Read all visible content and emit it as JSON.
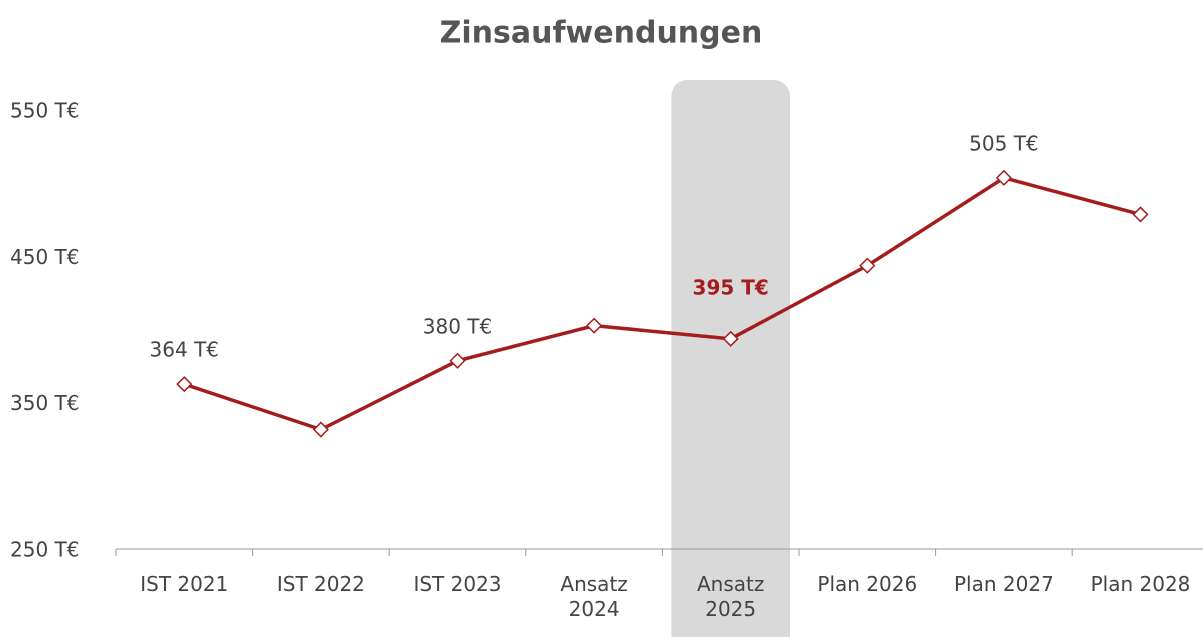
{
  "chart_data": {
    "type": "line",
    "title": "Zinsaufwendungen",
    "categories": [
      "IST 2021",
      "IST 2022",
      "IST 2023",
      "Ansatz\n2024",
      "Ansatz\n2025",
      "Plan 2026",
      "Plan 2027",
      "Plan 2028"
    ],
    "series": [
      {
        "color": "#a51c1c",
        "values": [
          364,
          333,
          380,
          404,
          395,
          445,
          505,
          480
        ],
        "value_labels": [
          "364 T€",
          null,
          "380 T€",
          null,
          "395 T€",
          null,
          "505 T€",
          null
        ]
      }
    ],
    "highlight": 4,
    "ylim": [
      250,
      550
    ],
    "yticks": [
      {
        "value": 250,
        "label": "250 T€"
      },
      {
        "value": 350,
        "label": "350 T€"
      },
      {
        "value": 450,
        "label": "450 T€"
      },
      {
        "value": 550,
        "label": "550 T€"
      }
    ]
  }
}
